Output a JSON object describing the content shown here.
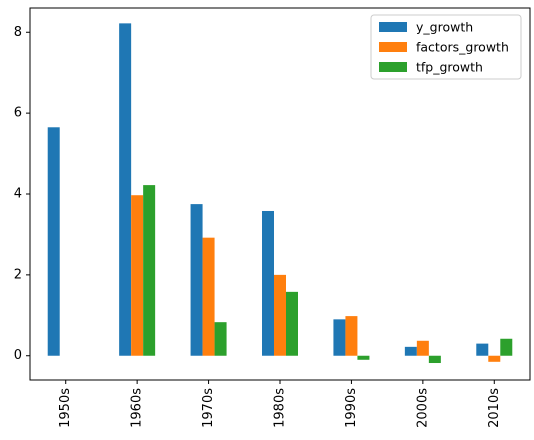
{
  "chart_data": {
    "type": "bar",
    "title": "",
    "xlabel": "",
    "ylabel": "",
    "categories": [
      "1950s",
      "1960s",
      "1970s",
      "1980s",
      "1990s",
      "2000s",
      "2010s"
    ],
    "series": [
      {
        "name": "y_growth",
        "color": "#1f77b4",
        "values": [
          5.65,
          8.22,
          3.75,
          3.58,
          0.9,
          0.22,
          0.3
        ]
      },
      {
        "name": "factors_growth",
        "color": "#ff7f0e",
        "values": [
          null,
          3.97,
          2.92,
          2.0,
          0.98,
          0.37,
          -0.15
        ]
      },
      {
        "name": "tfp_growth",
        "color": "#2ca02c",
        "values": [
          null,
          4.22,
          0.83,
          1.58,
          -0.1,
          -0.18,
          0.42
        ]
      }
    ],
    "ylim": [
      -0.6,
      8.6
    ],
    "yticks": [
      0,
      2,
      4,
      6,
      8
    ],
    "grid": false,
    "legend_position": "top-right"
  }
}
